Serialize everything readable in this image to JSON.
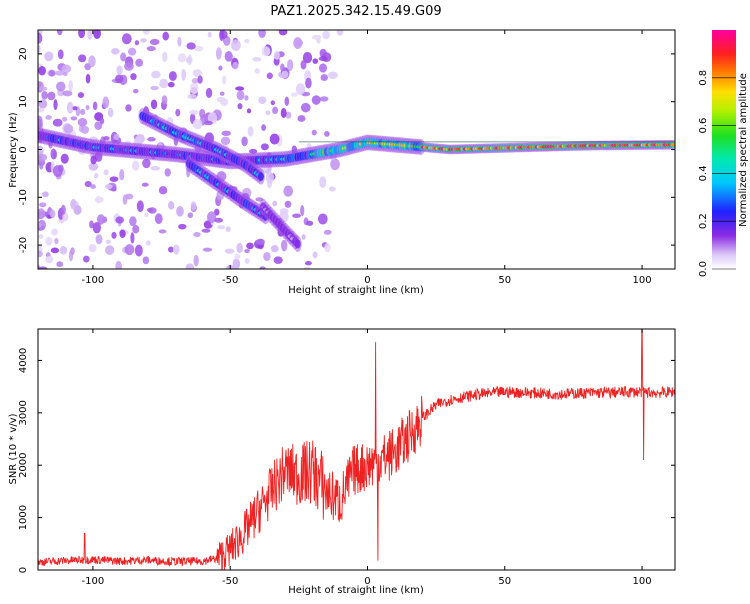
{
  "figure_title": "PAZ1.2025.342.15.49.G09",
  "colors": {
    "snr_line": "#ee2222",
    "axis": "#000000",
    "background": "#ffffff"
  },
  "chart_data": [
    {
      "type": "heatmap",
      "title": "PAZ1.2025.342.15.49.G09",
      "xlabel": "Height of straight line (km)",
      "ylabel": "Frequency (Hz)",
      "xlim": [
        -120,
        112
      ],
      "ylim": [
        -25,
        25
      ],
      "xticks": [
        -100,
        -50,
        0,
        50,
        100
      ],
      "xtick_labels": [
        "-100",
        "-50",
        "0",
        "50",
        "100"
      ],
      "yticks": [
        -20,
        -10,
        0,
        10,
        20
      ],
      "ytick_labels": [
        "-20",
        "-10",
        "0",
        "10",
        "20"
      ],
      "colorbar": {
        "label": "Normalized spectral amplitude",
        "range": [
          0,
          1
        ],
        "ticks": [
          0.0,
          0.2,
          0.4,
          0.6,
          0.8
        ],
        "tick_labels": [
          "0.0",
          "0.2",
          "0.4",
          "0.6",
          "0.8"
        ],
        "colormap": "rainbow (white-violet-blue-cyan-green-yellow-red-magenta)"
      },
      "ridges": [
        {
          "name": "main",
          "points": [
            [
              -120,
              3
            ],
            [
              -100,
              0.5
            ],
            [
              -70,
              -1
            ],
            [
              -50,
              -2.5
            ],
            [
              -30,
              -2
            ],
            [
              -20,
              -1
            ],
            [
              -10,
              0
            ],
            [
              0,
              1.5
            ],
            [
              10,
              1
            ],
            [
              30,
              0
            ],
            [
              60,
              0.5
            ],
            [
              80,
              0.8
            ],
            [
              112,
              1
            ]
          ],
          "amplitude": 0.8
        },
        {
          "name": "upper-branch",
          "points": [
            [
              -82,
              7
            ],
            [
              -70,
              3.5
            ],
            [
              -55,
              0
            ],
            [
              -45,
              -3
            ],
            [
              -38,
              -6
            ]
          ],
          "amplitude": 0.4
        },
        {
          "name": "lower-branch",
          "points": [
            [
              -65,
              -3
            ],
            [
              -55,
              -7
            ],
            [
              -45,
              -11
            ],
            [
              -37,
              -14
            ]
          ],
          "amplitude": 0.35
        },
        {
          "name": "lower-tail",
          "points": [
            [
              -38,
              -12
            ],
            [
              -30,
              -17
            ],
            [
              -25,
              -20
            ]
          ],
          "amplitude": 0.12
        }
      ]
    },
    {
      "type": "line",
      "title": "",
      "xlabel": "Height of straight line (km)",
      "ylabel": "SNR (10 * v/v)",
      "xlim": [
        -120,
        112
      ],
      "ylim": [
        0,
        4600
      ],
      "xticks": [
        -100,
        -50,
        0,
        50,
        100
      ],
      "xtick_labels": [
        "-100",
        "-50",
        "0",
        "50",
        "100"
      ],
      "yticks": [
        0,
        1000,
        2000,
        3000,
        4000
      ],
      "ytick_labels": [
        "0",
        "1000",
        "2000",
        "3000",
        "4000"
      ],
      "series": [
        {
          "name": "SNR",
          "color": "#ee2222",
          "x": [
            -120,
            -110,
            -100,
            -90,
            -80,
            -70,
            -60,
            -55,
            -50,
            -45,
            -40,
            -35,
            -30,
            -25,
            -20,
            -15,
            -10,
            -5,
            0,
            5,
            10,
            15,
            20,
            25,
            30,
            35,
            40,
            50,
            60,
            70,
            80,
            90,
            95,
            100,
            105,
            112
          ],
          "y": [
            150,
            180,
            200,
            170,
            190,
            160,
            170,
            220,
            400,
            700,
            1100,
            1500,
            1900,
            1800,
            1900,
            1500,
            1300,
            1900,
            2000,
            2100,
            2250,
            2550,
            2900,
            3150,
            3250,
            3300,
            3350,
            3400,
            3380,
            3360,
            3380,
            3390,
            3400,
            3400,
            3380,
            3400
          ],
          "spikes": [
            {
              "x": 3,
              "y": 4350
            },
            {
              "x": 3.8,
              "y": 180
            },
            {
              "x": 100,
              "y": 4600
            },
            {
              "x": 100.5,
              "y": 2100
            },
            {
              "x": -103,
              "y": 700
            }
          ]
        }
      ]
    }
  ]
}
